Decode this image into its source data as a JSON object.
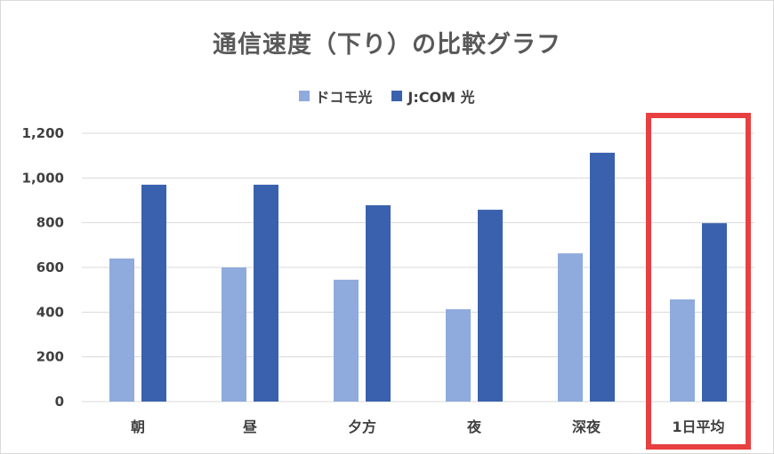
{
  "chart_data": {
    "type": "bar",
    "title": "通信速度（下り）の比較グラフ",
    "categories": [
      "朝",
      "昼",
      "夕方",
      "夜",
      "深夜",
      "1日平均"
    ],
    "series": [
      {
        "name": "ドコモ光",
        "color": "#8faadc",
        "values": [
          640,
          600,
          545,
          413,
          663,
          457
        ]
      },
      {
        "name": "J:COM 光",
        "color": "#3a61ad",
        "values": [
          970,
          970,
          878,
          858,
          1113,
          798
        ]
      }
    ],
    "y_ticks": [
      "0",
      "200",
      "400",
      "600",
      "800",
      "1,000",
      "1,200"
    ],
    "ylim": [
      0,
      1200
    ],
    "grid": true,
    "legend_position": "top",
    "highlight": {
      "category": "1日平均",
      "color": "#e84040"
    }
  }
}
